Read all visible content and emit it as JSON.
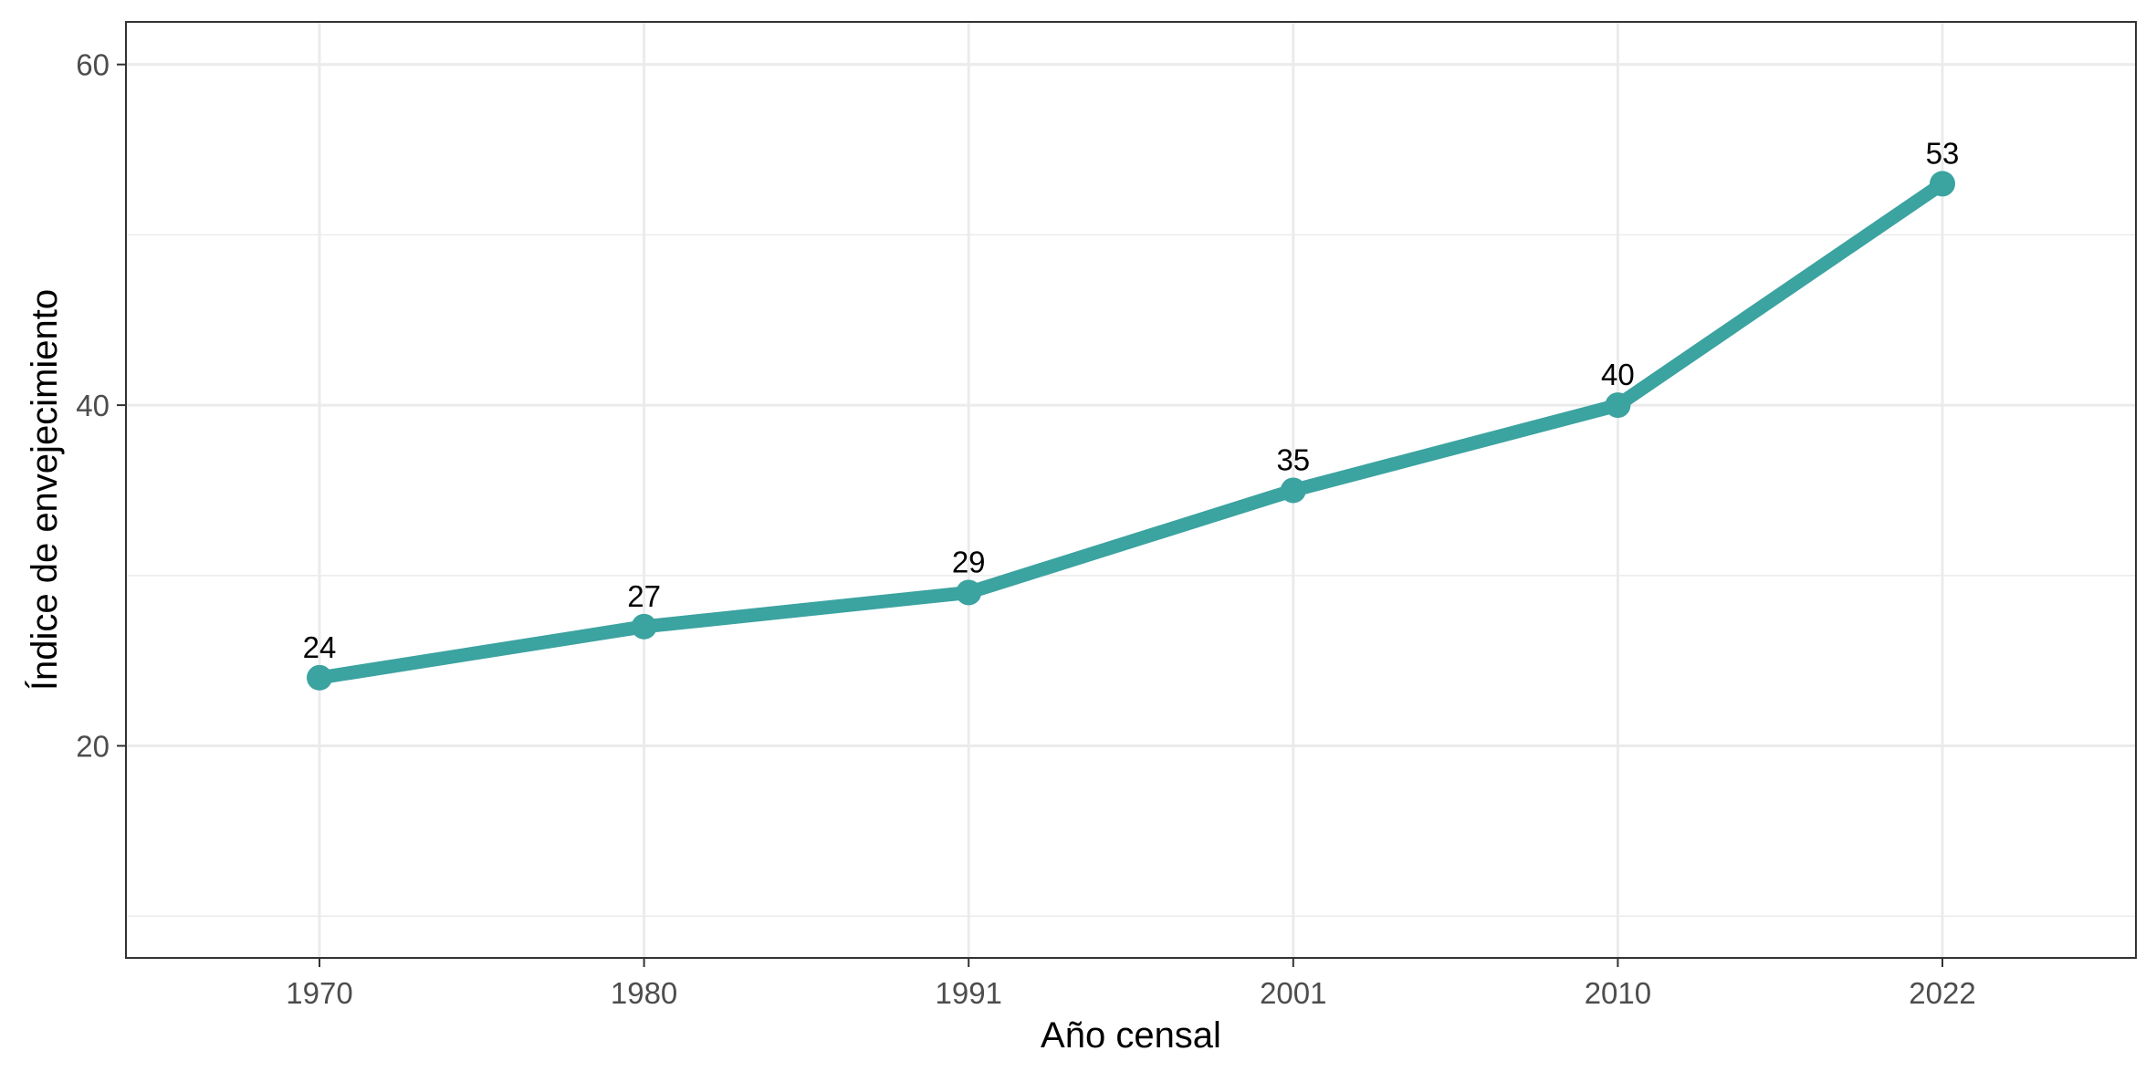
{
  "chart_data": {
    "type": "line",
    "categories": [
      "1970",
      "1980",
      "1991",
      "2001",
      "2010",
      "2022"
    ],
    "values": [
      24,
      27,
      29,
      35,
      40,
      53
    ],
    "data_labels": [
      "24",
      "27",
      "29",
      "35",
      "40",
      "53"
    ],
    "title": "",
    "xlabel": "Año censal",
    "ylabel": "Índice de envejecimiento",
    "ylim": [
      7.55,
      62.5
    ],
    "yticks": [
      20,
      40,
      60
    ],
    "ytick_labels": [
      "20",
      "40",
      "60"
    ],
    "minor_gridlines": [
      10,
      30,
      50
    ],
    "grid": true,
    "legend": "none",
    "colors": {
      "series": "#3ba3a0",
      "grid": "#ebebeb",
      "border": "#333333",
      "tick_text": "#4d4d4d"
    }
  }
}
